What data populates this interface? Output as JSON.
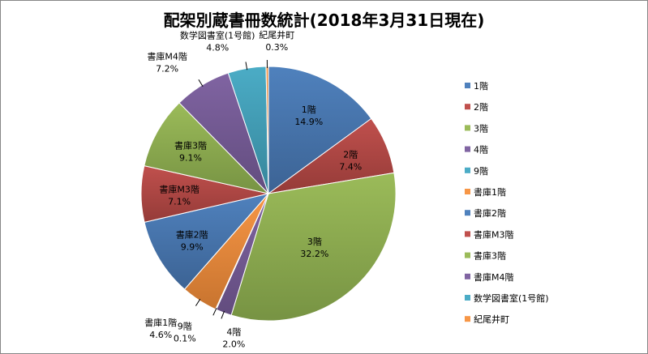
{
  "chart_data": {
    "type": "pie",
    "title": "配架別蔵書冊数統計(2018年3月31日現在)",
    "legend_position": "right",
    "categories": [
      "1階",
      "2階",
      "3階",
      "4階",
      "9階",
      "書庫1階",
      "書庫2階",
      "書庫M3階",
      "書庫3階",
      "書庫M4階",
      "数学図書室(1号館)",
      "紀尾井町"
    ],
    "values": [
      14.9,
      7.4,
      32.2,
      2.0,
      0.1,
      4.6,
      9.9,
      7.1,
      9.1,
      7.2,
      4.8,
      0.3
    ],
    "value_labels": [
      "14.9%",
      "7.4%",
      "32.2%",
      "2.0%",
      "0.1%",
      "4.6%",
      "9.9%",
      "7.1%",
      "9.1%",
      "7.2%",
      "4.8%",
      "0.3%"
    ],
    "colors": [
      "#4F81BD",
      "#C0504D",
      "#9BBB59",
      "#8064A2",
      "#4BACC6",
      "#F79646",
      "#4F81BD",
      "#C0504D",
      "#9BBB59",
      "#8064A2",
      "#4BACC6",
      "#F79646"
    ],
    "gradient_dark": [
      "#3C6394",
      "#953B38",
      "#779343",
      "#624C7E",
      "#36869B",
      "#C8742F",
      "#3C6394",
      "#953B38",
      "#779343",
      "#624C7E",
      "#36869B",
      "#C8742F"
    ]
  }
}
